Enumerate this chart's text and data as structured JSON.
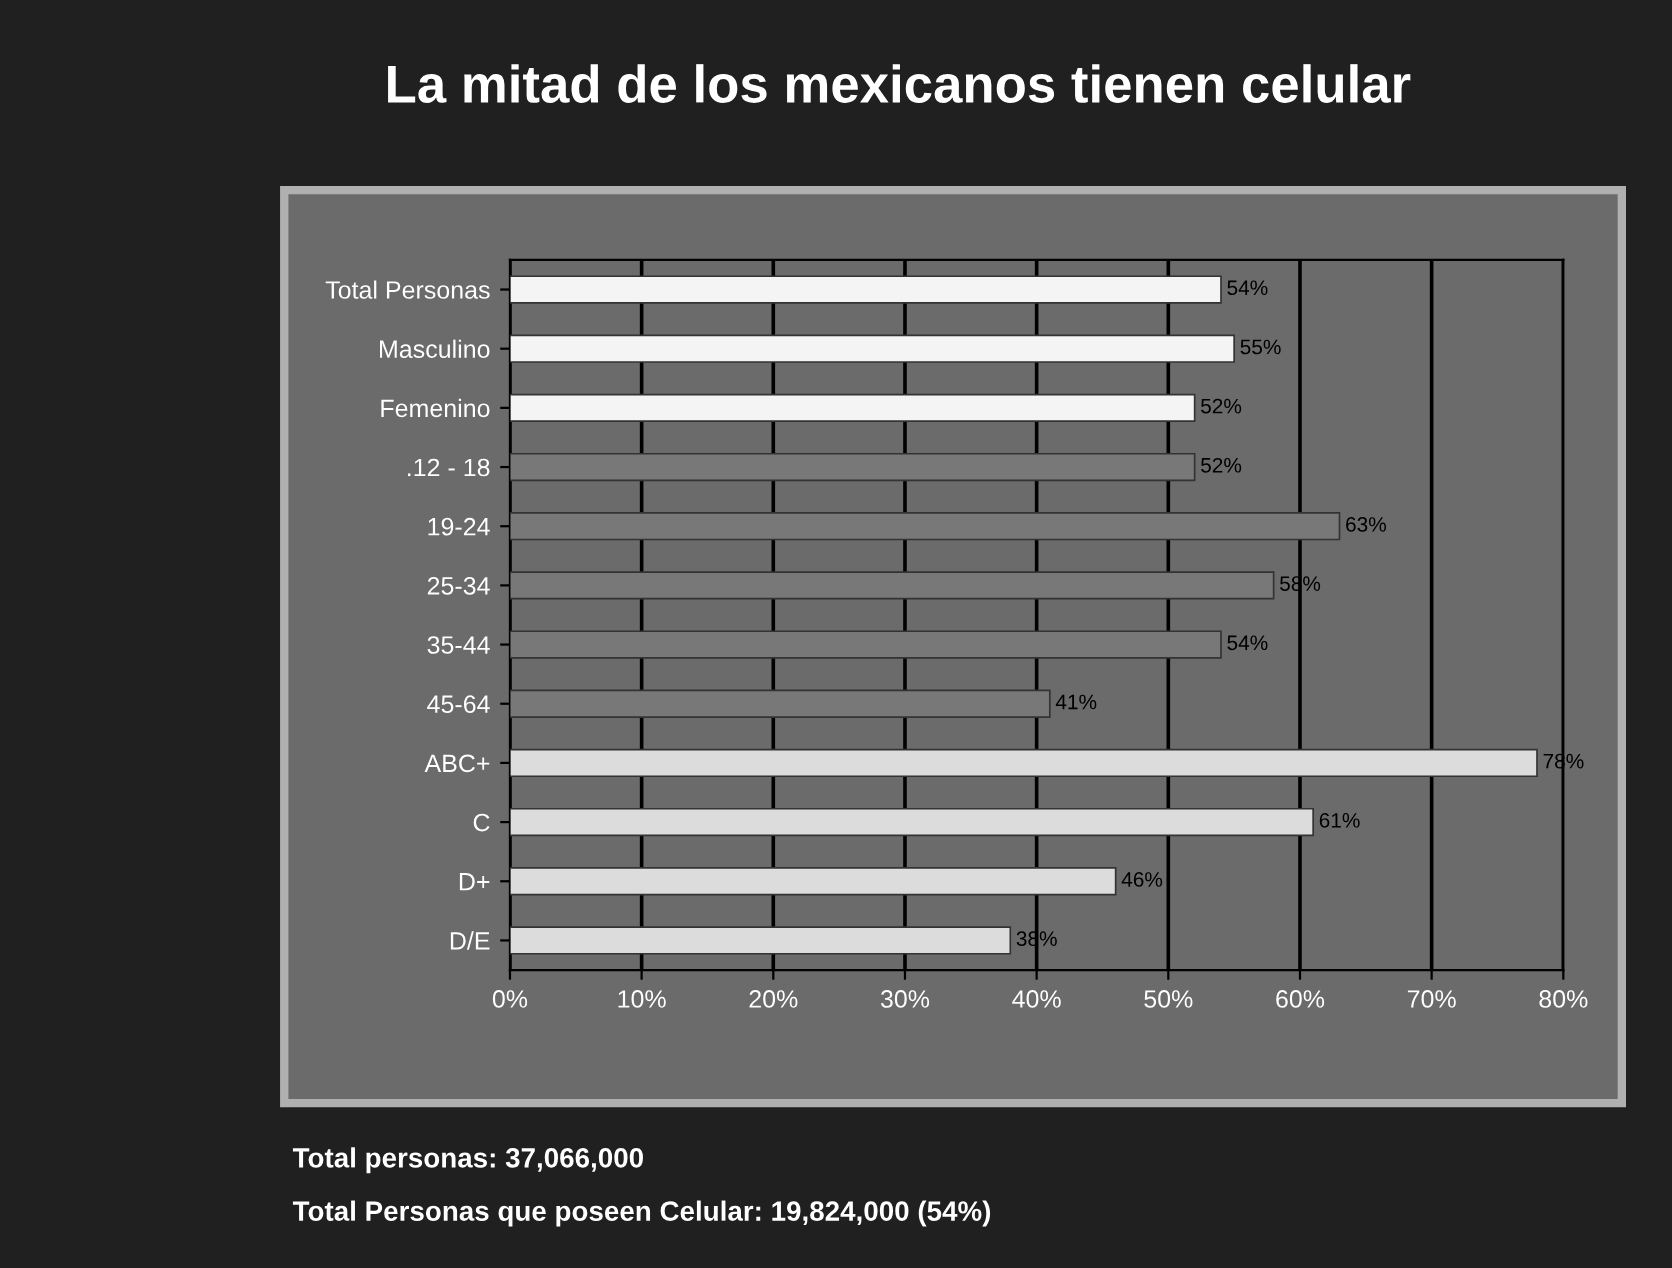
{
  "chart_data": {
    "type": "bar",
    "orientation": "horizontal",
    "title": "La mitad de los mexicanos tienen celular",
    "categories": [
      "Total Personas",
      "Masculino",
      "Femenino",
      ".12 - 18",
      "19-24",
      "25-34",
      "35-44",
      "45-64",
      "ABC+",
      "C",
      "D+",
      "D/E"
    ],
    "values": [
      54,
      55,
      52,
      52,
      63,
      58,
      54,
      41,
      78,
      61,
      46,
      38
    ],
    "value_labels": [
      "54%",
      "55%",
      "52%",
      "52%",
      "63%",
      "58%",
      "54%",
      "41%",
      "78%",
      "61%",
      "46%",
      "38%"
    ],
    "colors": [
      "#f4f4f4",
      "#f4f4f4",
      "#f4f4f4",
      "#787878",
      "#787878",
      "#787878",
      "#787878",
      "#787878",
      "#dcdcdc",
      "#dcdcdc",
      "#dcdcdc",
      "#dcdcdc"
    ],
    "xlim": [
      0,
      80
    ],
    "xticks": [
      {
        "value": 0,
        "label": "0%"
      },
      {
        "value": 10,
        "label": "10%"
      },
      {
        "value": 20,
        "label": "20%"
      },
      {
        "value": 30,
        "label": "30%"
      },
      {
        "value": 40,
        "label": "40%"
      },
      {
        "value": 50,
        "label": "50%"
      },
      {
        "value": 60,
        "label": "60%"
      },
      {
        "value": 70,
        "label": "70%"
      },
      {
        "value": 80,
        "label": "80%"
      }
    ],
    "grid": "x",
    "annotations": [
      "Total personas: 37,066,000",
      "Total Personas que poseen Celular: 19,824,000 (54%)"
    ]
  }
}
